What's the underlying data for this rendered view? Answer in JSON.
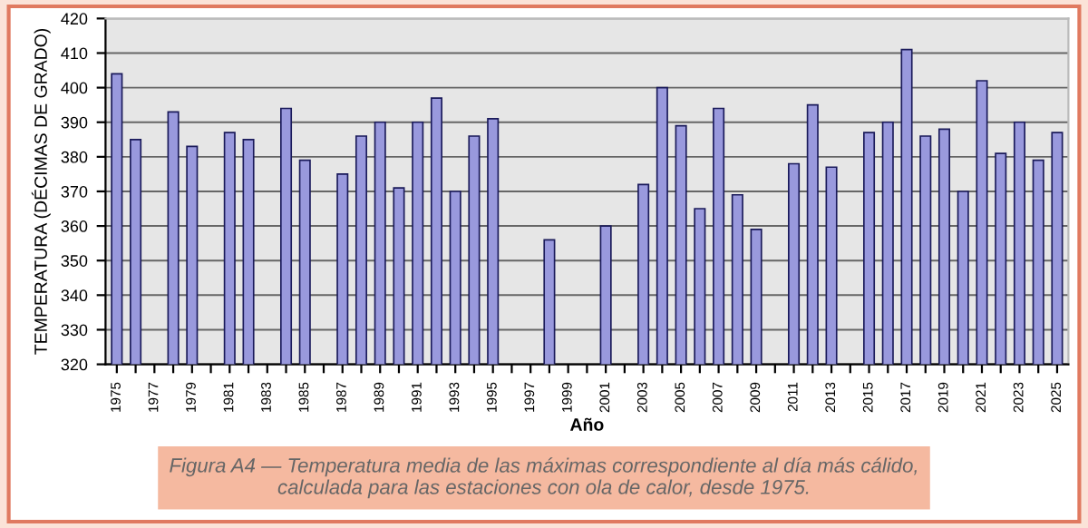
{
  "chart_data": {
    "type": "bar",
    "xlabel": "Año",
    "ylabel": "TEMPERATURA (DÉCIMAS DE GRADO)",
    "categories": [
      "1975",
      null,
      "1977",
      null,
      "1979",
      null,
      "1981",
      null,
      "1983",
      null,
      "1985",
      null,
      "1987",
      null,
      "1989",
      null,
      "1991",
      null,
      "1993",
      null,
      "1995",
      null,
      "1997",
      null,
      "1999",
      null,
      "2001",
      null,
      "2003",
      null,
      "2005",
      null,
      "2007",
      null,
      "2009",
      null,
      "2011",
      null,
      "2013",
      null,
      "2015",
      null,
      "2017",
      null,
      "2019",
      null,
      "2021",
      null,
      "2023",
      null,
      "2025"
    ],
    "values": [
      404,
      385,
      null,
      393,
      383,
      null,
      387,
      385,
      null,
      394,
      379,
      null,
      375,
      386,
      390,
      371,
      390,
      397,
      370,
      386,
      391,
      null,
      null,
      356,
      null,
      null,
      360,
      null,
      372,
      400,
      389,
      365,
      394,
      369,
      359,
      null,
      378,
      395,
      377,
      null,
      387,
      390,
      411,
      386,
      388,
      370,
      402,
      381,
      390,
      379,
      387
    ],
    "color": "#9999dd",
    "ylim": [
      320,
      420
    ],
    "yticks": [
      320,
      330,
      340,
      350,
      360,
      370,
      380,
      390,
      400,
      410,
      420
    ],
    "grid": "y",
    "annotations": [
      "Figura A4 — Temperatura media de las máximas correspondiente al día más cálido,\ncalculada para las estaciones con ola de calor, desde 1975."
    ]
  }
}
